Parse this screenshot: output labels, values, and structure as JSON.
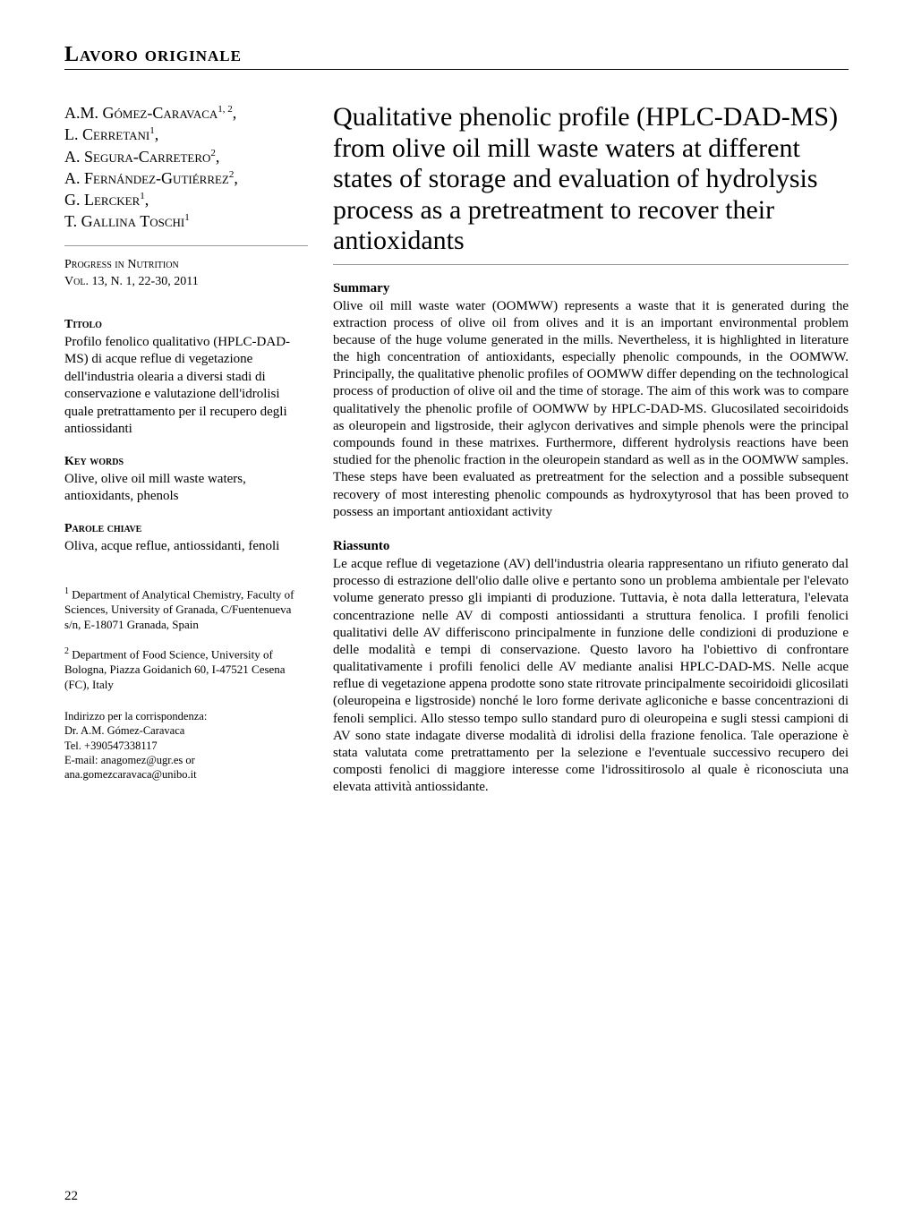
{
  "section_header": "Lavoro originale",
  "authors_html": "A.M. Gómez-Caravaca<sup>1, 2</sup>,<br>L. Cerretani<sup>1</sup>,<br>A. Segura-Carretero<sup>2</sup>,<br>A. Fernández-Gutiérrez<sup>2</sup>,<br>G. Lercker<sup>1</sup>,<br>T. Gallina Toschi<sup>1</sup>",
  "pub_line1": "Progress in Nutrition",
  "pub_line2": "Vol. 13, N. 1, 22-30, 2011",
  "titolo_heading": "Titolo",
  "titolo_text": "Profilo fenolico qualitativo (HPLC-DAD-MS) di acque reflue di vegetazione dell'industria olearia a diversi stadi di conservazione e valutazione dell'idrolisi quale pretrattamento per il recupero degli antiossidanti",
  "keywords_heading": "Key words",
  "keywords_text": "Olive, olive oil mill waste waters, antioxidants, phenols",
  "parole_heading": "Parole chiave",
  "parole_text": "Oliva, acque reflue, antiossidanti, fenoli",
  "affil1_html": "<sup>1</sup> Department of Analytical Chemistry, Faculty of Sciences, University of Granada, C/Fuentenueva s/n, E-18071 Granada, Spain",
  "affil2_html": "<sup>2</sup> Department of Food Science, University of Bologna, Piazza Goidanich 60, I-47521 Cesena (FC), Italy",
  "corr_heading": "Indirizzo per la corrispondenza:",
  "corr_name": "Dr. A.M. Gómez-Caravaca",
  "corr_tel": "Tel. +390547338117",
  "corr_email": "E-mail: anagomez@ugr.es or ana.gomezcaravaca@unibo.it",
  "article_title": "Qualitative phenolic profile (HPLC-DAD-MS) from olive oil mill waste waters at different states of storage and evaluation of hydrolysis process as a pretreatment to recover their antioxidants",
  "summary_heading": "Summary",
  "summary_text": "Olive oil mill waste water (OOMWW) represents a waste that it is generated during the extraction process of olive oil from olives and it is an important environmental problem because of the huge volume generated in the mills. Nevertheless, it is highlighted in literature the high concentration of antioxidants, especially phenolic compounds, in the OOMWW. Principally, the qualitative phenolic profiles of OOMWW differ depending on the technological process of production of olive oil and the time of storage. The aim of this work was to compare qualitatively the phenolic profile of OOMWW by HPLC-DAD-MS. Glucosilated secoiridoids as oleuropein and ligstroside, their aglycon derivatives and simple phenols were the principal compounds found in these matrixes. Furthermore, different hydrolysis reactions have been studied for the phenolic fraction in the oleuropein standard as well as in the OOMWW samples. These steps have been evaluated as pretreatment for the selection and a possible subsequent recovery of most interesting phenolic compounds as hydroxytyrosol that has been proved to possess an important antioxidant activity",
  "riassunto_heading": "Riassunto",
  "riassunto_text": "Le acque reflue di vegetazione (AV) dell'industria olearia rappresentano un rifiuto generato dal processo di estrazione dell'olio dalle olive e pertanto sono un problema ambientale per l'elevato volume generato presso gli impianti di produzione. Tuttavia, è nota dalla letteratura, l'elevata concentrazione nelle AV di composti antiossidanti a struttura fenolica. I profili fenolici qualitativi delle AV differiscono principalmente in funzione delle condizioni di produzione e delle modalità e tempi di conservazione. Questo lavoro ha l'obiettivo di confrontare qualitativamente i profili fenolici delle AV mediante analisi HPLC-DAD-MS. Nelle acque reflue di vegetazione appena prodotte sono state ritrovate principalmente secoiridoidi glicosilati (oleuropeina e ligstroside) nonché le loro forme derivate agliconiche e basse concentrazioni di fenoli semplici. Allo stesso tempo sullo standard puro di oleuropeina e sugli stessi campioni di AV sono state indagate diverse modalità di idrolisi della frazione fenolica. Tale operazione è stata valutata come pretrattamento per la selezione e l'eventuale successivo recupero dei composti fenolici di maggiore interesse come l'idrossitirosolo al quale è riconosciuta una elevata attività antiossidante.",
  "page_number": "22",
  "colors": {
    "text": "#000000",
    "background": "#ffffff",
    "rule_light": "#999999"
  },
  "fonts": {
    "body_family": "Times New Roman, Times, serif",
    "section_header_size": 24,
    "authors_size": 18,
    "title_size": 30,
    "side_text_size": 15,
    "abs_text_size": 15,
    "affil_size": 13,
    "corr_size": 12.5
  }
}
